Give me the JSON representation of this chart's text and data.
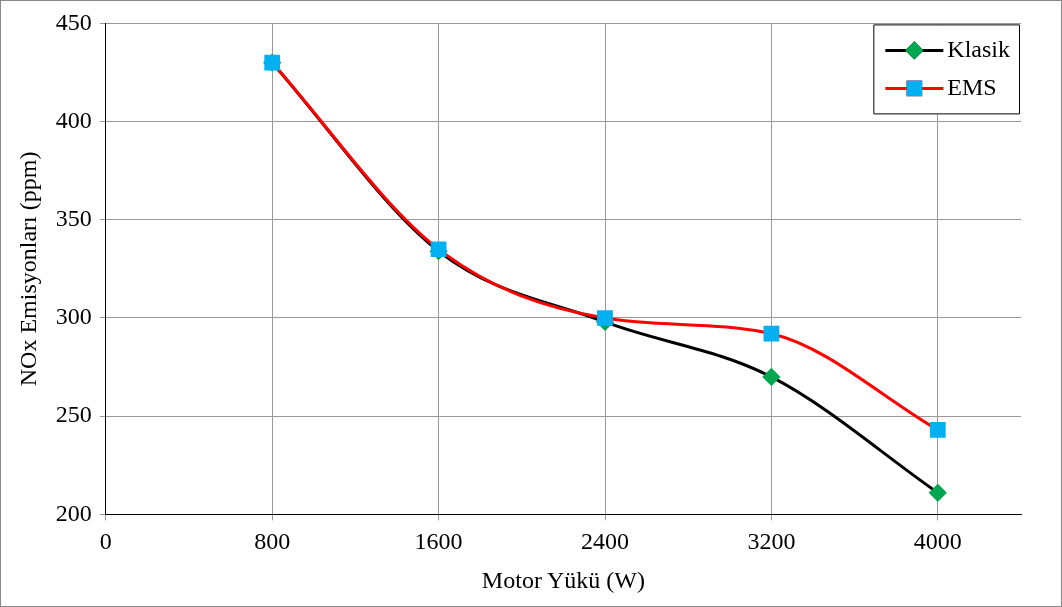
{
  "chart_data": {
    "type": "line",
    "xlabel": "Motor Yükü (W)",
    "ylabel": "NOx Emisyonları (ppm)",
    "x": [
      800,
      1600,
      2400,
      3200,
      4000
    ],
    "series": [
      {
        "name": "Klasik",
        "color": "#000000",
        "marker": "diamond",
        "colors": [
          "#00a650",
          "#00a650",
          "#00a650",
          "#00a650",
          "#00a650"
        ],
        "values": [
          430,
          334,
          298,
          270,
          211
        ]
      },
      {
        "name": "EMS",
        "color": "#ff0000",
        "marker": "square",
        "colors": [
          "#00b0f0",
          "#00b0f0",
          "#00b0f0",
          "#00b0f0",
          "#00b0f0"
        ],
        "values": [
          430,
          335,
          300,
          292,
          243
        ]
      }
    ],
    "xlim": [
      0,
      4400
    ],
    "xticks": [
      0,
      800,
      1600,
      2400,
      3200,
      4000
    ],
    "ylim": [
      200,
      450
    ],
    "yticks": [
      200,
      250,
      300,
      350,
      400,
      450
    ],
    "grid": true,
    "legend": "top right"
  }
}
